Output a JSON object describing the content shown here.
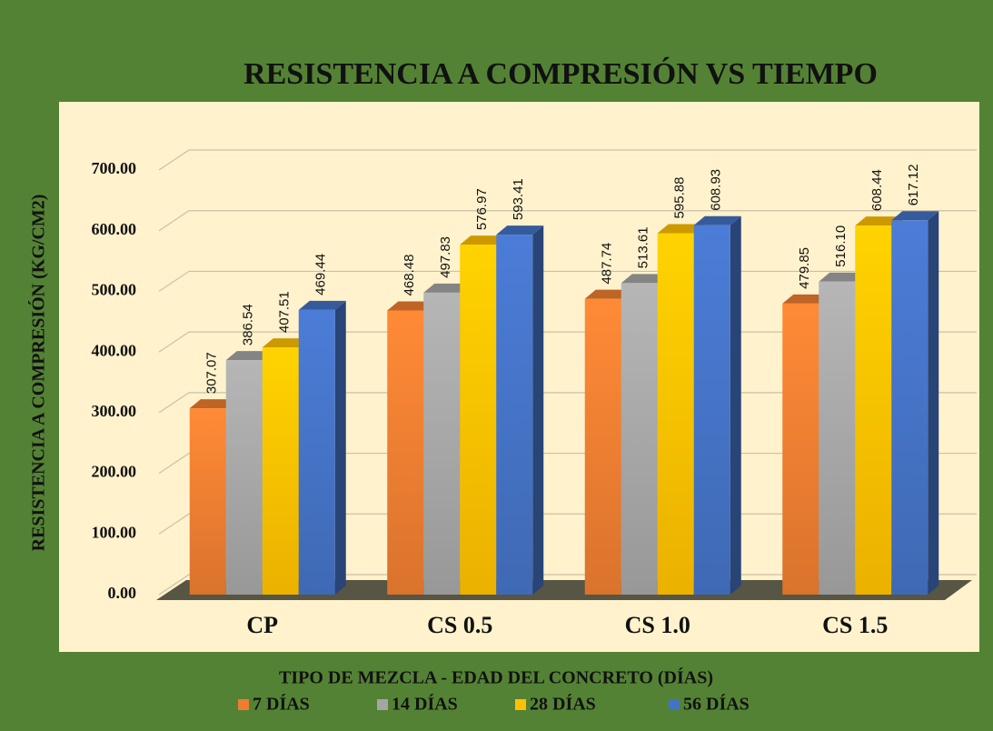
{
  "chart_data": {
    "type": "bar",
    "title": "RESISTENCIA A COMPRESIÓN VS TIEMPO",
    "x_label": "TIPO DE MEZCLA - EDAD DEL CONCRETO (DÍAS)",
    "y_label": "RESISTENCIA A COMPRESIÓN (KG/CM2)",
    "categories": [
      "CP",
      "CS 0.5",
      "CS 1.0",
      "CS 1.5"
    ],
    "series": [
      {
        "name": "7 DÍAS",
        "color": "#ed7d31",
        "values": [
          307.07,
          468.48,
          487.74,
          479.85
        ],
        "value_labels": [
          "307.07",
          "468.48",
          "487.74",
          "479.85"
        ]
      },
      {
        "name": "14 DÍAS",
        "color": "#a5a5a5",
        "values": [
          386.54,
          497.83,
          513.61,
          516.1
        ],
        "value_labels": [
          "386.54",
          "497.83",
          "513.61",
          "516.10"
        ]
      },
      {
        "name": "28 DÍAS",
        "color": "#ffc000",
        "values": [
          407.51,
          576.97,
          595.88,
          608.44
        ],
        "value_labels": [
          "407.51",
          "576.97",
          "595.88",
          "608.44"
        ]
      },
      {
        "name": "56 DÍAS",
        "color": "#4472c4",
        "values": [
          469.44,
          593.41,
          608.93,
          617.12
        ],
        "value_labels": [
          "469.44",
          "593.41",
          "608.93",
          "617.12"
        ]
      }
    ],
    "ylim": [
      0,
      700
    ],
    "yticks": [
      {
        "value": 0,
        "label": "0.00"
      },
      {
        "value": 100,
        "label": "100.00"
      },
      {
        "value": 200,
        "label": "200.00"
      },
      {
        "value": 300,
        "label": "300.00"
      },
      {
        "value": 400,
        "label": "400.00"
      },
      {
        "value": 500,
        "label": "500.00"
      },
      {
        "value": 600,
        "label": "600.00"
      },
      {
        "value": 700,
        "label": "700.00"
      }
    ],
    "grid": true,
    "legend": "bottom"
  }
}
